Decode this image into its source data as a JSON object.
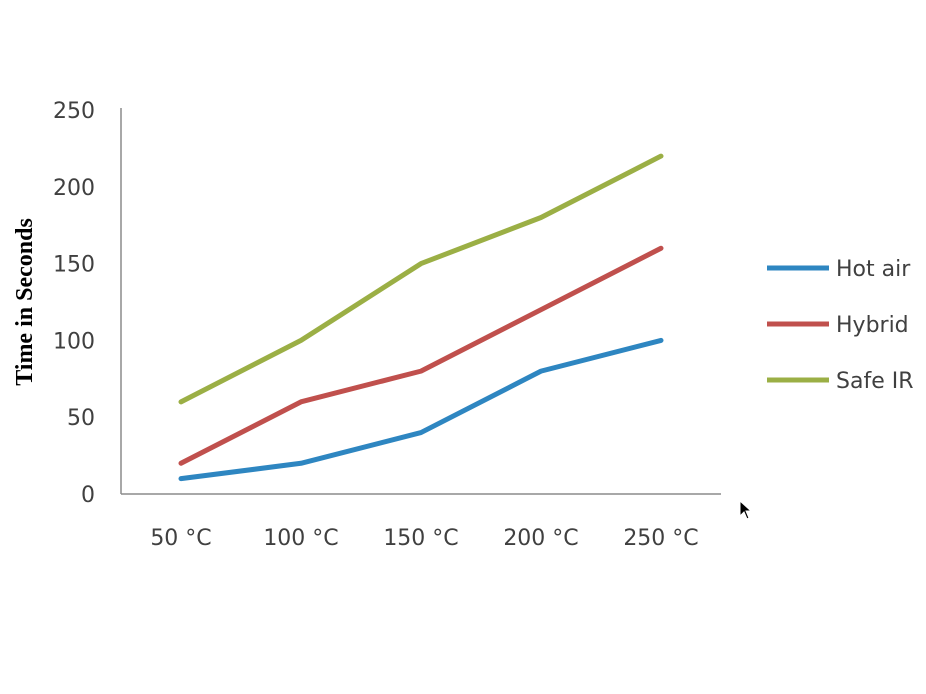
{
  "chart_data": {
    "type": "line",
    "title": "",
    "xlabel": "",
    "ylabel": "Time in Seconds",
    "categories": [
      "50 °C",
      "100 °C",
      "150 °C",
      "200 °C",
      "250 °C"
    ],
    "ylim": [
      0,
      250
    ],
    "yticks": [
      0,
      50,
      100,
      150,
      200,
      250
    ],
    "grid": false,
    "legend_position": "right",
    "series": [
      {
        "name": "Hot air",
        "color": "#2E86C1",
        "values": [
          10,
          20,
          40,
          80,
          100
        ]
      },
      {
        "name": "Hybrid",
        "color": "#C0504D",
        "values": [
          20,
          60,
          80,
          120,
          160
        ]
      },
      {
        "name": "Safe IR",
        "color": "#9BAF45",
        "values": [
          60,
          100,
          150,
          180,
          220
        ]
      }
    ]
  },
  "icons": {
    "cursor": "mouse-pointer-icon"
  }
}
